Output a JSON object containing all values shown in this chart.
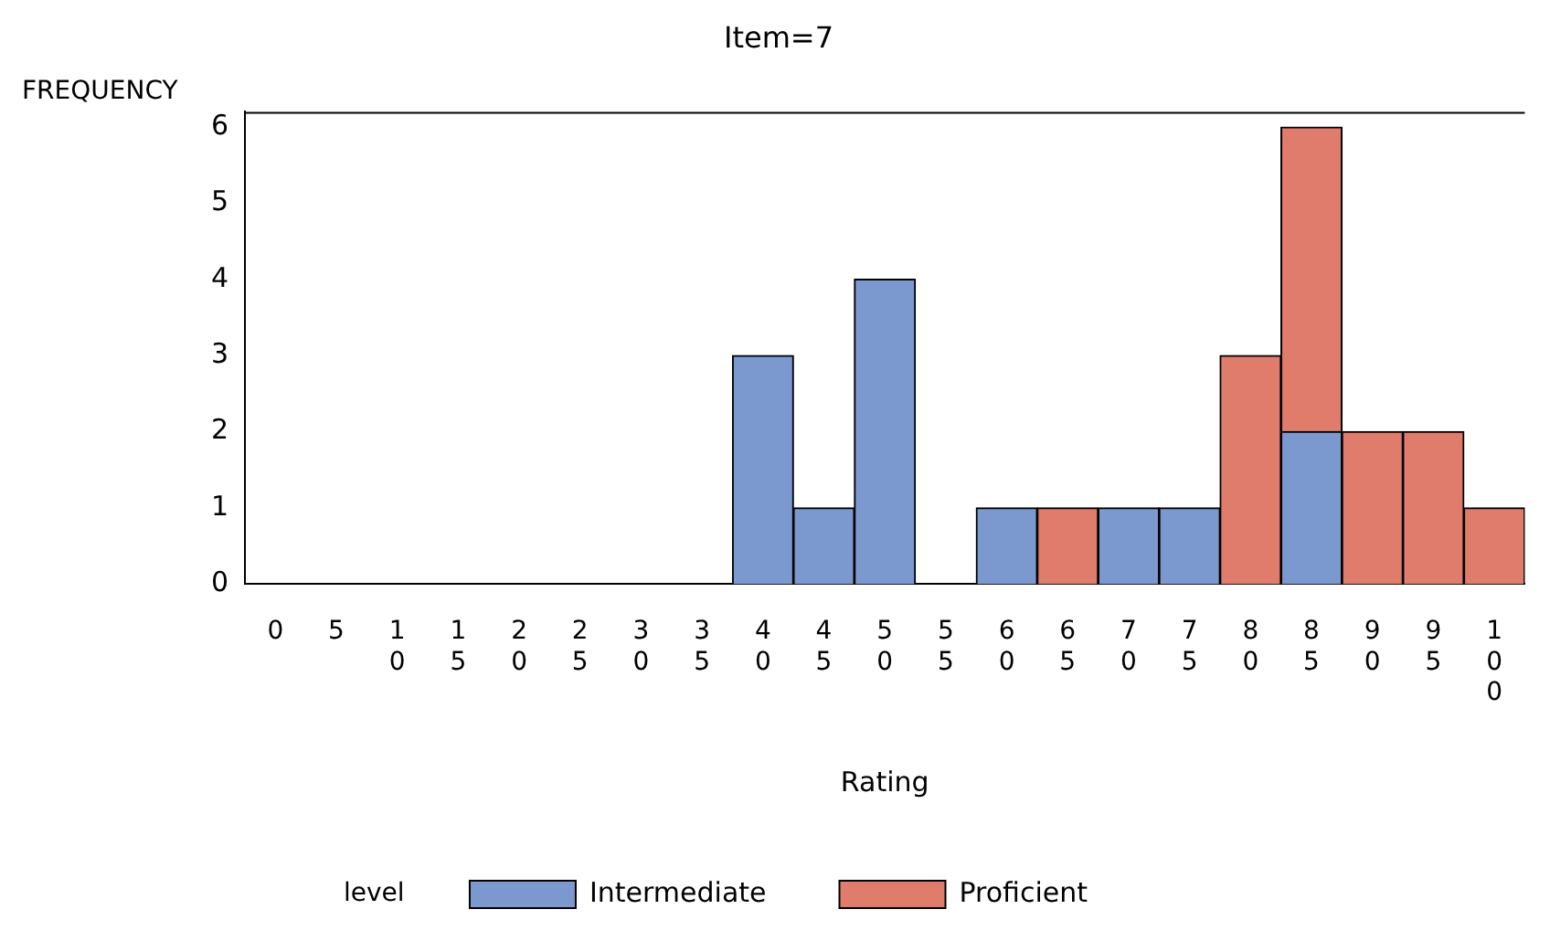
{
  "chart_data": {
    "type": "bar",
    "title": "Item=7",
    "xlabel": "Rating",
    "ylabel": "FREQUENCY",
    "legend_title": "level",
    "stacked": true,
    "legend": "bottom",
    "grid": false,
    "categories": [
      "0",
      "5",
      "10",
      "15",
      "20",
      "25",
      "30",
      "35",
      "40",
      "45",
      "50",
      "55",
      "60",
      "65",
      "70",
      "75",
      "80",
      "85",
      "90",
      "95",
      "100"
    ],
    "series": [
      {
        "name": "Intermediate",
        "color": "#7b98cf",
        "values": [
          0,
          0,
          0,
          0,
          0,
          0,
          0,
          0,
          3,
          1,
          4,
          0,
          1,
          0,
          1,
          1,
          0,
          2,
          0,
          0,
          0
        ]
      },
      {
        "name": "Proficient",
        "color": "#df7c6c",
        "values": [
          0,
          0,
          0,
          0,
          0,
          0,
          0,
          0,
          0,
          0,
          0,
          0,
          0,
          1,
          0,
          0,
          3,
          4,
          2,
          2,
          1
        ]
      }
    ],
    "ylim": [
      0,
      6.2
    ],
    "yticks": [
      0,
      1,
      2,
      3,
      4,
      5,
      6
    ]
  }
}
